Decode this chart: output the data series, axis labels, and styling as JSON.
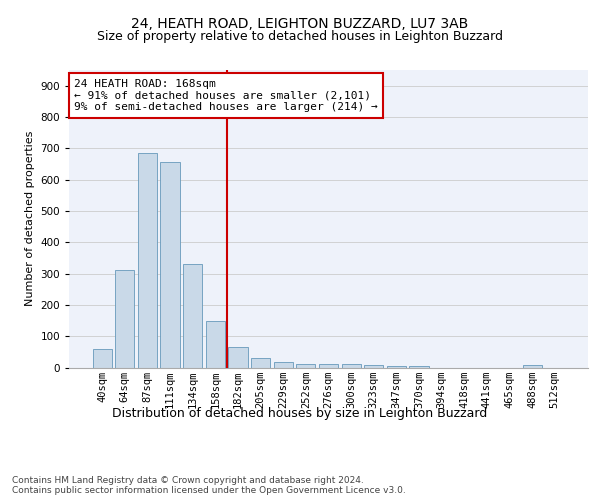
{
  "title": "24, HEATH ROAD, LEIGHTON BUZZARD, LU7 3AB",
  "subtitle": "Size of property relative to detached houses in Leighton Buzzard",
  "xlabel": "Distribution of detached houses by size in Leighton Buzzard",
  "ylabel": "Number of detached properties",
  "categories": [
    "40sqm",
    "64sqm",
    "87sqm",
    "111sqm",
    "134sqm",
    "158sqm",
    "182sqm",
    "205sqm",
    "229sqm",
    "252sqm",
    "276sqm",
    "300sqm",
    "323sqm",
    "347sqm",
    "370sqm",
    "394sqm",
    "418sqm",
    "441sqm",
    "465sqm",
    "488sqm",
    "512sqm"
  ],
  "values": [
    60,
    310,
    685,
    655,
    330,
    150,
    65,
    30,
    18,
    12,
    10,
    10,
    8,
    5,
    5,
    0,
    0,
    0,
    0,
    8,
    0
  ],
  "bar_color": "#c9d9e8",
  "bar_edge_color": "#6699bb",
  "vline_color": "#cc0000",
  "annotation_text": "24 HEATH ROAD: 168sqm\n← 91% of detached houses are smaller (2,101)\n9% of semi-detached houses are larger (214) →",
  "annotation_box_color": "#ffffff",
  "annotation_box_edge_color": "#cc0000",
  "ylim": [
    0,
    950
  ],
  "yticks": [
    0,
    100,
    200,
    300,
    400,
    500,
    600,
    700,
    800,
    900
  ],
  "background_color": "#eef2fa",
  "grid_color": "#cccccc",
  "footer_text": "Contains HM Land Registry data © Crown copyright and database right 2024.\nContains public sector information licensed under the Open Government Licence v3.0.",
  "title_fontsize": 10,
  "subtitle_fontsize": 9,
  "xlabel_fontsize": 9,
  "ylabel_fontsize": 8,
  "tick_fontsize": 7.5,
  "annotation_fontsize": 8,
  "footer_fontsize": 6.5
}
